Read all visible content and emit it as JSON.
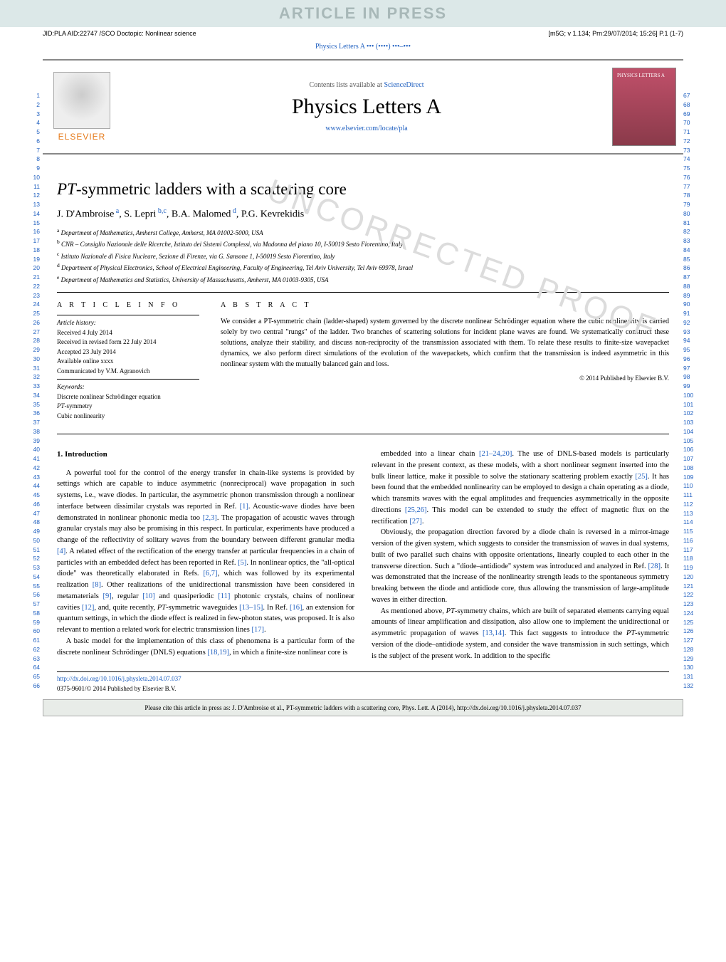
{
  "banner": "ARTICLE IN PRESS",
  "header": {
    "left": "JID:PLA  AID:22747 /SCO   Doctopic: Nonlinear science",
    "right": "[m5G; v 1.134; Prn:29/07/2014; 15:26] P.1 (1-7)"
  },
  "journal_ref": "Physics Letters A ••• (••••) •••–•••",
  "masthead": {
    "contents_prefix": "Contents lists available at ",
    "contents_link": "ScienceDirect",
    "journal_title": "Physics Letters A",
    "journal_url": "www.elsevier.com/locate/pla",
    "publisher": "ELSEVIER",
    "cover_label": "PHYSICS LETTERS A"
  },
  "title_prefix": "PT",
  "title_rest": "-symmetric ladders with a scattering core",
  "authors_html": "J. D'Ambroise",
  "authors": [
    {
      "name": "J. D'Ambroise",
      "sup": "a"
    },
    {
      "name": "S. Lepri",
      "sup": "b,c"
    },
    {
      "name": "B.A. Malomed",
      "sup": "d"
    },
    {
      "name": "P.G. Kevrekidis",
      "sup": "e"
    }
  ],
  "affiliations": [
    {
      "sup": "a",
      "text": "Department of Mathematics, Amherst College, Amherst, MA 01002-5000, USA"
    },
    {
      "sup": "b",
      "text": "CNR – Consiglio Nazionale delle Ricerche, Istituto dei Sistemi Complessi, via Madonna del piano 10, I-50019 Sesto Fiorentino, Italy"
    },
    {
      "sup": "c",
      "text": "Istituto Nazionale di Fisica Nucleare, Sezione di Firenze, via G. Sansone 1, I-50019 Sesto Fiorentino, Italy"
    },
    {
      "sup": "d",
      "text": "Department of Physical Electronics, School of Electrical Engineering, Faculty of Engineering, Tel Aviv University, Tel Aviv 69978, Israel"
    },
    {
      "sup": "e",
      "text": "Department of Mathematics and Statistics, University of Massachusetts, Amherst, MA 01003-9305, USA"
    }
  ],
  "info": {
    "heading": "A R T I C L E   I N F O",
    "history_label": "Article history:",
    "history": [
      "Received 4 July 2014",
      "Received in revised form 22 July 2014",
      "Accepted 23 July 2014",
      "Available online xxxx",
      "Communicated by V.M. Agranovich"
    ],
    "keywords_label": "Keywords:",
    "keywords": [
      "Discrete nonlinear Schrödinger equation",
      "PT-symmetry",
      "Cubic nonlinearity"
    ]
  },
  "abstract": {
    "heading": "A B S T R A C T",
    "text": "We consider a PT-symmetric chain (ladder-shaped) system governed by the discrete nonlinear Schrödinger equation where the cubic nonlinearity is carried solely by two central \"rungs\" of the ladder. Two branches of scattering solutions for incident plane waves are found. We systematically construct these solutions, analyze their stability, and discuss non-reciprocity of the transmission associated with them. To relate these results to finite-size wavepacket dynamics, we also perform direct simulations of the evolution of the wavepackets, which confirm that the transmission is indeed asymmetric in this nonlinear system with the mutually balanced gain and loss.",
    "copyright": "© 2014 Published by Elsevier B.V."
  },
  "section1": {
    "heading": "1. Introduction",
    "p1": "A powerful tool for the control of the energy transfer in chain-like systems is provided by settings which are capable to induce asymmetric (nonreciprocal) wave propagation in such systems, i.e., wave diodes. In particular, the asymmetric phonon transmission through a nonlinear interface between dissimilar crystals was reported in Ref. [1]. Acoustic-wave diodes have been demonstrated in nonlinear phononic media too [2,3]. The propagation of acoustic waves through granular crystals may also be promising in this respect. In particular, experiments have produced a change of the reflectivity of solitary waves from the boundary between different granular media [4]. A related effect of the rectification of the energy transfer at particular frequencies in a chain of particles with an embedded defect has been reported in Ref. [5]. In nonlinear optics, the \"all-optical diode\" was theoretically elaborated in Refs. [6,7], which was followed by its experimental realization [8]. Other realizations of the unidirectional transmission have been considered in metamaterials [9], regular [10] and quasiperiodic [11] photonic crystals, chains of nonlinear cavities [12], and, quite recently, PT-symmetric waveguides [13–15]. In Ref. [16], an extension for quantum settings, in which the diode effect is realized in few-photon states, was proposed. It is also relevant to mention a related work for electric transmission lines [17].",
    "p2": "A basic model for the implementation of this class of phenomena is a particular form of the discrete nonlinear Schrödinger (DNLS) equations [18,19], in which a finite-size nonlinear core is",
    "p3": "embedded into a linear chain [21–24,20]. The use of DNLS-based models is particularly relevant in the present context, as these models, with a short nonlinear segment inserted into the bulk linear lattice, make it possible to solve the stationary scattering problem exactly [25]. It has been found that the embedded nonlinearity can be employed to design a chain operating as a diode, which transmits waves with the equal amplitudes and frequencies asymmetrically in the opposite directions [25,26]. This model can be extended to study the effect of magnetic flux on the rectification [27].",
    "p4": "Obviously, the propagation direction favored by a diode chain is reversed in a mirror-image version of the given system, which suggests to consider the transmission of waves in dual systems, built of two parallel such chains with opposite orientations, linearly coupled to each other in the transverse direction. Such a \"diode–antidiode\" system was introduced and analyzed in Ref. [28]. It was demonstrated that the increase of the nonlinearity strength leads to the spontaneous symmetry breaking between the diode and antidiode core, thus allowing the transmission of large-amplitude waves in either direction.",
    "p5": "As mentioned above, PT-symmetry chains, which are built of separated elements carrying equal amounts of linear amplification and dissipation, also allow one to implement the unidirectional or asymmetric propagation of waves [13,14]. This fact suggests to introduce the PT-symmetric version of the diode–antidiode system, and consider the wave transmission in such settings, which is the subject of the present work. In addition to the specific"
  },
  "footer": {
    "doi": "http://dx.doi.org/10.1016/j.physleta.2014.07.037",
    "issn_copy": "0375-9601/© 2014 Published by Elsevier B.V."
  },
  "cite_box": "Please cite this article in press as: J. D'Ambroise et al., PT-symmetric ladders with a scattering core, Phys. Lett. A (2014), http://dx.doi.org/10.1016/j.physleta.2014.07.037",
  "line_numbers": {
    "left_start": 1,
    "left_end": 66,
    "right_start": 67,
    "right_end": 132
  },
  "watermark_text": "UNCORRECTED PROOF",
  "colors": {
    "link": "#2060c0",
    "banner_bg": "#dce8e8",
    "banner_fg": "#a8b8b8",
    "elsevier": "#e67a1a",
    "cover_bg_top": "#c0506a",
    "cover_bg_bottom": "#8a3a4a",
    "cite_box_bg": "#e8ece8"
  }
}
